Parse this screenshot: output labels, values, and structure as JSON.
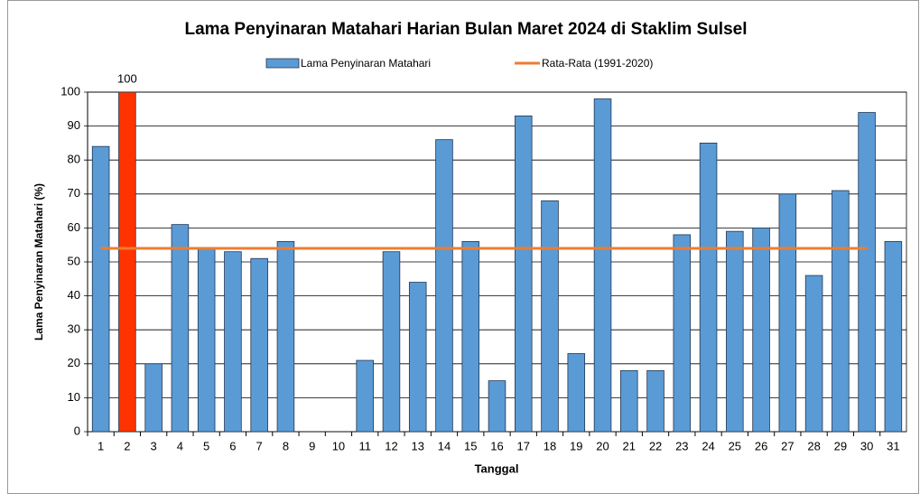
{
  "chart_data": {
    "type": "bar",
    "title": "Lama Penyinaran Matahari Harian Bulan Maret 2024 di Staklim Sulsel",
    "x_label": "Tanggal",
    "y_label": "Lama Penyinaran Matahari (%)",
    "categories": [
      "1",
      "2",
      "3",
      "4",
      "5",
      "6",
      "7",
      "8",
      "9",
      "10",
      "11",
      "12",
      "13",
      "14",
      "15",
      "16",
      "17",
      "18",
      "19",
      "20",
      "21",
      "22",
      "23",
      "24",
      "25",
      "26",
      "27",
      "28",
      "29",
      "30",
      "31"
    ],
    "series": [
      {
        "name": "Lama Penyinaran Matahari",
        "type": "bar",
        "color": "#5b9bd5",
        "colors": [
          "#5b9bd5",
          "#ff3300",
          "#5b9bd5",
          "#5b9bd5",
          "#5b9bd5",
          "#5b9bd5",
          "#5b9bd5",
          "#5b9bd5",
          "#5b9bd5",
          "#5b9bd5",
          "#5b9bd5",
          "#5b9bd5",
          "#5b9bd5",
          "#5b9bd5",
          "#5b9bd5",
          "#5b9bd5",
          "#5b9bd5",
          "#5b9bd5",
          "#5b9bd5",
          "#5b9bd5",
          "#5b9bd5",
          "#5b9bd5",
          "#5b9bd5",
          "#5b9bd5",
          "#5b9bd5",
          "#5b9bd5",
          "#5b9bd5",
          "#5b9bd5",
          "#5b9bd5",
          "#5b9bd5",
          "#5b9bd5"
        ],
        "values": [
          84,
          100,
          20,
          61,
          54,
          53,
          51,
          56,
          0,
          0,
          21,
          53,
          44,
          86,
          56,
          15,
          93,
          68,
          23,
          98,
          18,
          18,
          58,
          85,
          59,
          60,
          70,
          46,
          71,
          94,
          56
        ],
        "value_labels": [
          null,
          "100",
          null,
          null,
          null,
          null,
          null,
          null,
          null,
          null,
          null,
          null,
          null,
          null,
          null,
          null,
          null,
          null,
          null,
          null,
          null,
          null,
          null,
          null,
          null,
          null,
          null,
          null,
          null,
          null,
          null
        ]
      },
      {
        "name": "Rata-Rata (1991-2020)",
        "type": "line",
        "color": "#ed7d31",
        "values": [
          54,
          54,
          54,
          54,
          54,
          54,
          54,
          54,
          54,
          54,
          54,
          54,
          54,
          54,
          54,
          54,
          54,
          54,
          54,
          54,
          54,
          54,
          54,
          54,
          54,
          54,
          54,
          54,
          54,
          54,
          null
        ]
      }
    ],
    "ylim": [
      0,
      100
    ],
    "yticks": [
      0,
      10,
      20,
      30,
      40,
      50,
      60,
      70,
      80,
      90,
      100
    ],
    "grid": true
  }
}
